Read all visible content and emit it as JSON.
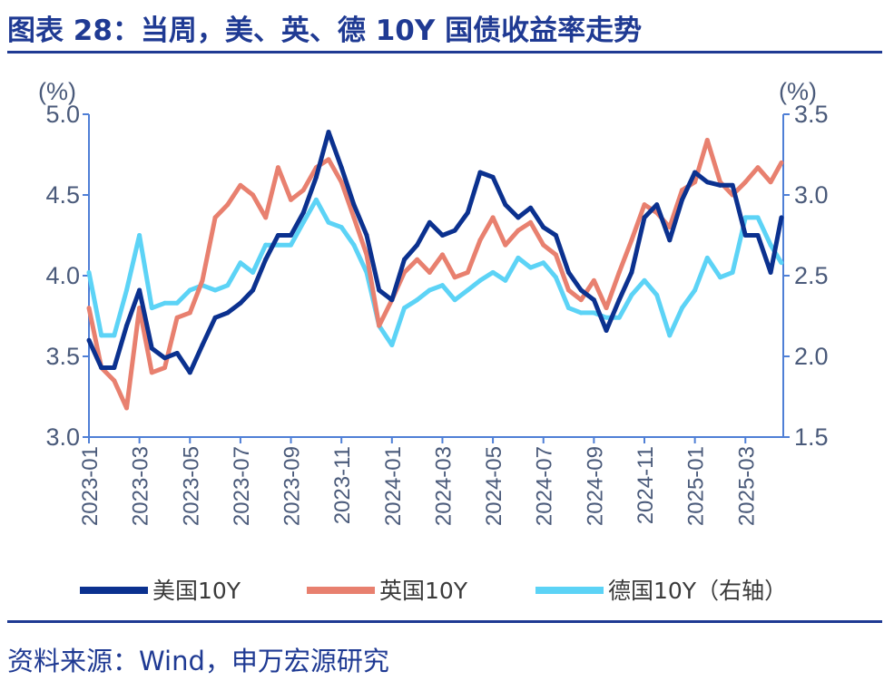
{
  "title": "图表 28：当周，美、英、德 10Y 国债收益率走势",
  "source": "资料来源：Wind，申万宏源研究",
  "chart_data": {
    "type": "line",
    "title": "图表 28：当周，美、英、德 10Y 国债收益率走势",
    "left_unit": "(%)",
    "right_unit": "(%)",
    "ylim_left": [
      3.0,
      5.0
    ],
    "ylim_right": [
      1.5,
      3.5
    ],
    "yticks_left": [
      "3.0",
      "3.5",
      "4.0",
      "4.5",
      "5.0"
    ],
    "yticks_right": [
      "1.5",
      "2.0",
      "2.5",
      "3.0",
      "3.5"
    ],
    "xticks": [
      "2023-01",
      "2023-03",
      "2023-05",
      "2023-07",
      "2023-09",
      "2023-11",
      "2024-01",
      "2024-03",
      "2024-05",
      "2024-07",
      "2024-09",
      "2024-11",
      "2025-01",
      "2025-03"
    ],
    "grid": false,
    "legend_position": "bottom",
    "x": [
      "2023-01-01",
      "2023-01-16",
      "2023-02-01",
      "2023-02-16",
      "2023-03-01",
      "2023-03-16",
      "2023-04-01",
      "2023-04-16",
      "2023-05-01",
      "2023-05-16",
      "2023-06-01",
      "2023-06-16",
      "2023-07-01",
      "2023-07-16",
      "2023-08-01",
      "2023-08-16",
      "2023-09-01",
      "2023-09-16",
      "2023-10-01",
      "2023-10-16",
      "2023-11-01",
      "2023-11-16",
      "2023-12-01",
      "2023-12-16",
      "2024-01-01",
      "2024-01-16",
      "2024-02-01",
      "2024-02-16",
      "2024-03-01",
      "2024-03-16",
      "2024-04-01",
      "2024-04-16",
      "2024-05-01",
      "2024-05-16",
      "2024-06-01",
      "2024-06-16",
      "2024-07-01",
      "2024-07-16",
      "2024-08-01",
      "2024-08-16",
      "2024-09-01",
      "2024-09-16",
      "2024-10-01",
      "2024-10-16",
      "2024-11-01",
      "2024-11-16",
      "2024-12-01",
      "2024-12-16",
      "2025-01-01",
      "2025-01-16",
      "2025-02-01",
      "2025-02-16",
      "2025-03-01",
      "2025-03-16",
      "2025-04-01",
      "2025-04-14"
    ],
    "series": [
      {
        "name": "美国10Y",
        "axis": "left",
        "color": "#0b318f",
        "values": [
          3.6,
          3.43,
          3.43,
          3.69,
          3.91,
          3.55,
          3.49,
          3.52,
          3.4,
          3.57,
          3.74,
          3.77,
          3.83,
          3.91,
          4.1,
          4.25,
          4.25,
          4.39,
          4.61,
          4.89,
          4.67,
          4.44,
          4.25,
          3.91,
          3.85,
          4.1,
          4.19,
          4.33,
          4.25,
          4.28,
          4.39,
          4.64,
          4.61,
          4.44,
          4.36,
          4.42,
          4.3,
          4.25,
          4.02,
          3.91,
          3.85,
          3.66,
          3.85,
          4.02,
          4.36,
          4.44,
          4.22,
          4.47,
          4.64,
          4.58,
          4.56,
          4.56,
          4.25,
          4.25,
          4.02,
          4.36
        ]
      },
      {
        "name": "英国10Y",
        "axis": "left",
        "color": "#e8806f",
        "values": [
          3.8,
          3.43,
          3.35,
          3.18,
          3.8,
          3.4,
          3.43,
          3.74,
          3.77,
          3.97,
          4.36,
          4.44,
          4.56,
          4.5,
          4.36,
          4.67,
          4.47,
          4.53,
          4.67,
          4.72,
          4.58,
          4.36,
          4.13,
          3.69,
          3.85,
          4.02,
          4.1,
          4.02,
          4.13,
          3.99,
          4.02,
          4.22,
          4.36,
          4.19,
          4.28,
          4.33,
          4.19,
          4.13,
          3.91,
          3.85,
          3.97,
          3.8,
          4.02,
          4.22,
          4.44,
          4.39,
          4.3,
          4.53,
          4.58,
          4.84,
          4.58,
          4.5,
          4.58,
          4.67,
          4.58,
          4.7
        ]
      },
      {
        "name": "德国10Y（右轴）",
        "axis": "right",
        "color": "#5cd3f6",
        "values": [
          2.52,
          2.13,
          2.13,
          2.41,
          2.75,
          2.3,
          2.33,
          2.33,
          2.41,
          2.44,
          2.41,
          2.44,
          2.58,
          2.52,
          2.69,
          2.69,
          2.69,
          2.83,
          2.97,
          2.83,
          2.8,
          2.69,
          2.52,
          2.19,
          2.07,
          2.3,
          2.35,
          2.41,
          2.44,
          2.35,
          2.41,
          2.47,
          2.52,
          2.47,
          2.61,
          2.55,
          2.58,
          2.49,
          2.3,
          2.27,
          2.27,
          2.24,
          2.24,
          2.38,
          2.47,
          2.38,
          2.13,
          2.3,
          2.41,
          2.61,
          2.49,
          2.52,
          2.86,
          2.86,
          2.69,
          2.58
        ]
      }
    ]
  }
}
